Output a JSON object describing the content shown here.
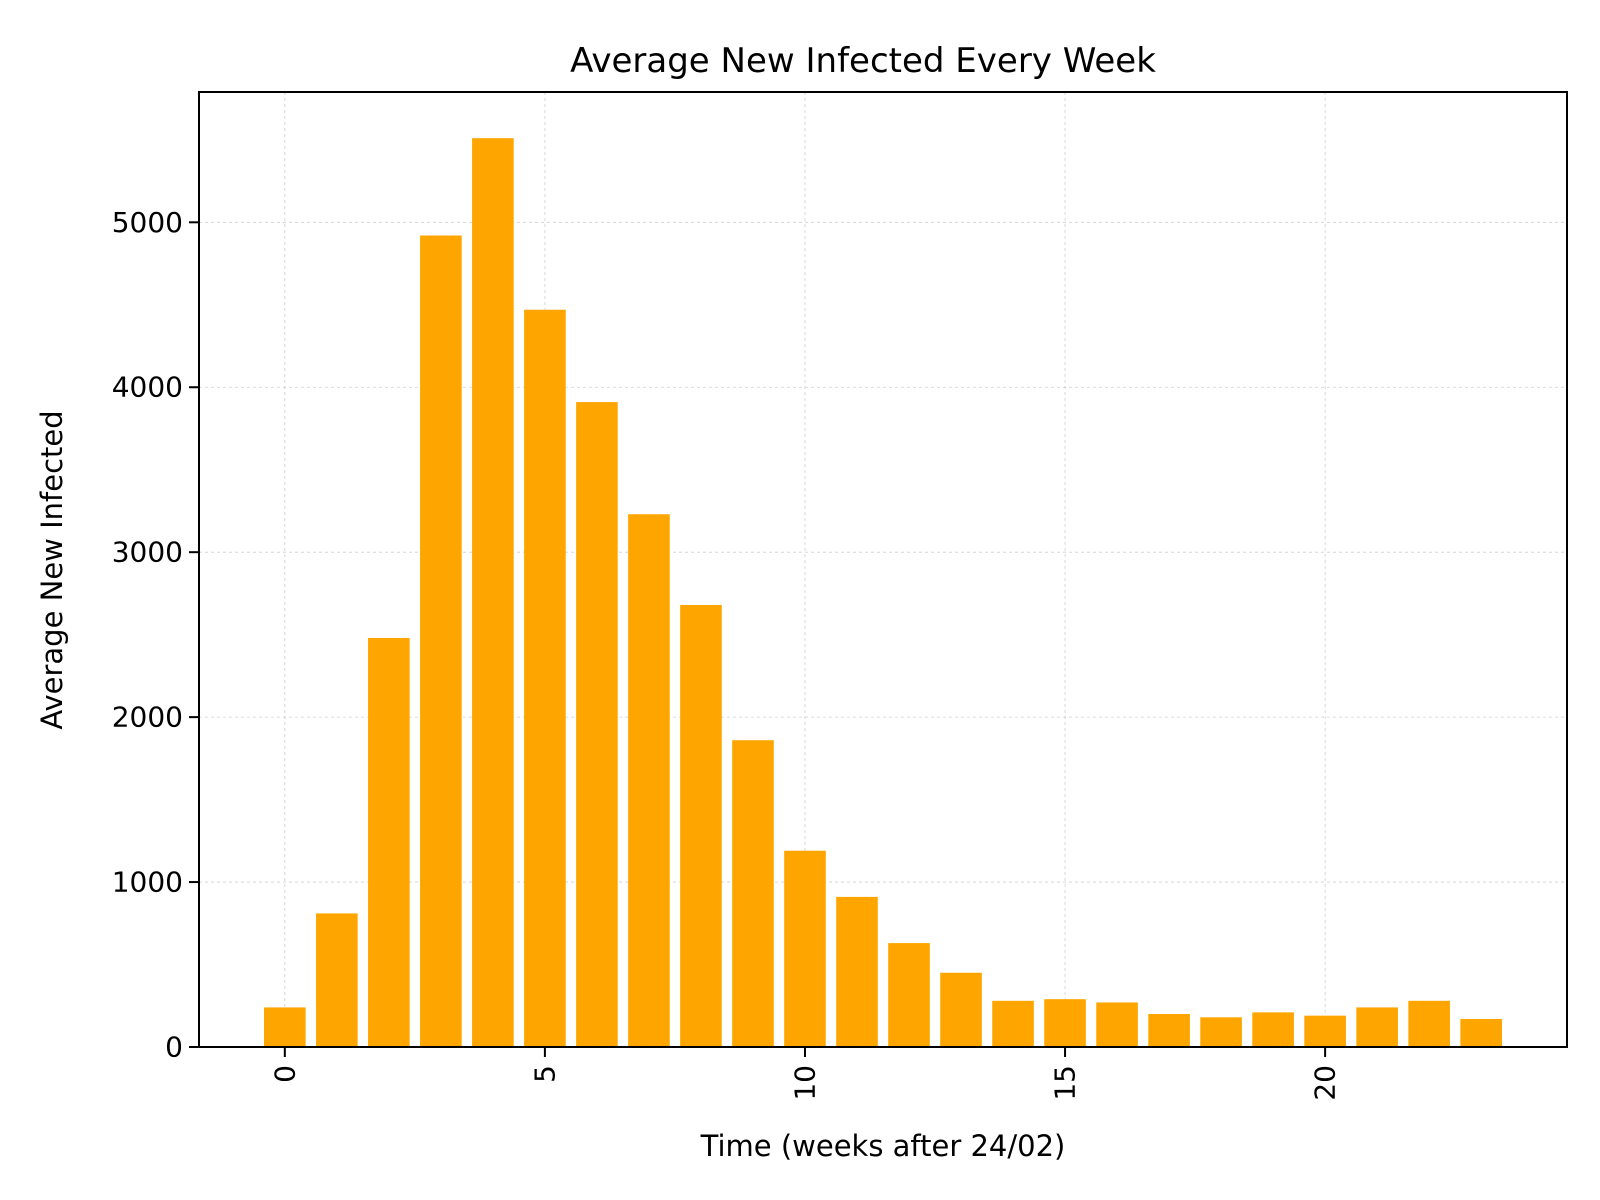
{
  "chart_data": {
    "type": "bar",
    "title": "Average New Infected Every Week",
    "xlabel": "Time (weeks after 24/02)",
    "ylabel": "Average New Infected",
    "x": [
      0,
      1,
      2,
      3,
      4,
      5,
      6,
      7,
      8,
      9,
      10,
      11,
      12,
      13,
      14,
      15,
      16,
      17,
      18,
      19,
      20,
      21,
      22,
      23
    ],
    "values": [
      240,
      810,
      2480,
      4920,
      5510,
      4470,
      3910,
      3230,
      2680,
      1860,
      1190,
      910,
      630,
      450,
      280,
      290,
      270,
      200,
      180,
      210,
      190,
      240,
      280,
      170
    ],
    "xticks": [
      0,
      5,
      10,
      15,
      20
    ],
    "xtick_labels": [
      "0",
      "5",
      "10",
      "15",
      "20"
    ],
    "yticks": [
      0,
      1000,
      2000,
      3000,
      4000,
      5000
    ],
    "ytick_labels": [
      "0",
      "1000",
      "2000",
      "3000",
      "4000",
      "5000"
    ],
    "xlim": [
      -1.65,
      24.65
    ],
    "ylim": [
      0,
      5790
    ],
    "grid": true,
    "bar_color": "#FFA500"
  }
}
